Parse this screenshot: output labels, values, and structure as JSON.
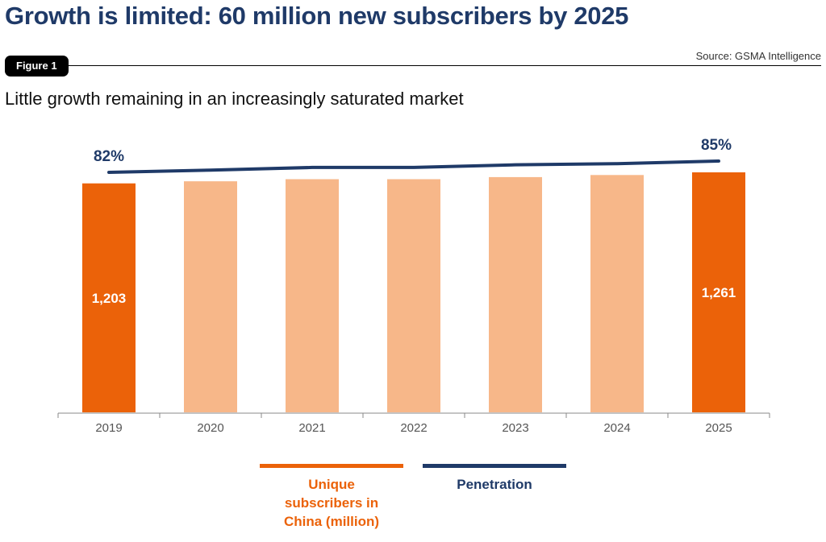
{
  "header": {
    "title": "Growth is limited: 60 million new subscribers by 2025",
    "figure_badge": "Figure 1",
    "source": "Source: GSMA Intelligence",
    "subtitle": "Little growth remaining in an increasingly saturated market"
  },
  "colors": {
    "title": "#1f3a68",
    "bar_highlight": "#eb6209",
    "bar_light": "#f7b789",
    "line": "#1f3a68",
    "axis": "#888888"
  },
  "chart_data": {
    "type": "bar",
    "categories": [
      "2019",
      "2020",
      "2021",
      "2022",
      "2023",
      "2024",
      "2025"
    ],
    "series": [
      {
        "name": "Unique subscribers in China (million)",
        "type": "bar",
        "values": [
          1203,
          1214,
          1225,
          1225,
          1236,
          1247,
          1261
        ],
        "highlight": [
          true,
          false,
          false,
          false,
          false,
          false,
          true
        ],
        "data_labels": [
          "1,203",
          "",
          "",
          "",
          "",
          "",
          "1,261"
        ]
      },
      {
        "name": "Penetration",
        "type": "line",
        "values": [
          82,
          82.6,
          83.3,
          83.3,
          84,
          84.3,
          85
        ],
        "unit": "%",
        "data_labels": [
          "82%",
          "",
          "",
          "",
          "",
          "",
          "85%"
        ]
      }
    ],
    "legend": [
      "Unique subscribers in China (million)",
      "Penetration"
    ],
    "legend_position": "bottom",
    "grid": false
  },
  "legend": {
    "bars_label": "Unique subscribers in China (million)",
    "line_label": "Penetration"
  }
}
